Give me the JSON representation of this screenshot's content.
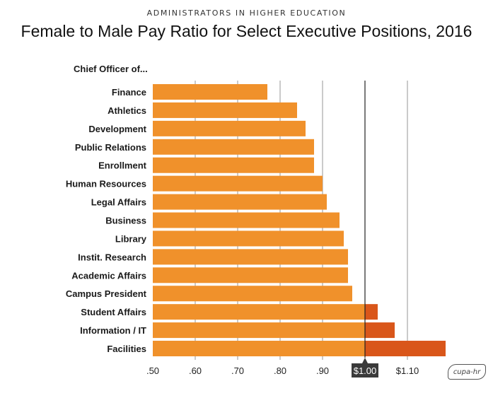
{
  "supertitle": "ADMINISTRATORS IN HIGHER EDUCATION",
  "title": "Female to Male Pay Ratio for Select Executive Positions, 2016",
  "logo_text": "cupa-hr",
  "chart_data": {
    "type": "bar",
    "orientation": "horizontal",
    "title": "Female to Male Pay Ratio for Select Executive Positions, 2016",
    "category_header": "Chief Officer of...",
    "categories": [
      "Finance",
      "Athletics",
      "Development",
      "Public Relations",
      "Enrollment",
      "Human Resources",
      "Legal Affairs",
      "Business",
      "Library",
      "Instit. Research",
      "Academic Affairs",
      "Campus President",
      "Student Affairs",
      "Information / IT",
      "Facilities"
    ],
    "values": [
      0.77,
      0.84,
      0.86,
      0.88,
      0.88,
      0.9,
      0.91,
      0.94,
      0.95,
      0.96,
      0.96,
      0.97,
      1.03,
      1.07,
      1.19
    ],
    "xlim": [
      0.5,
      1.2
    ],
    "ticks": [
      0.5,
      0.6,
      0.7,
      0.8,
      0.9,
      1.0,
      1.1
    ],
    "tick_labels": [
      ".50",
      ".60",
      ".70",
      ".80",
      ".90",
      "$1.00",
      "$1.10"
    ],
    "reference_line": 1.0,
    "highlight_tick_label": "$1.00",
    "grid": true,
    "colors": {
      "bar": "#f0912b",
      "bar_above_parity": "#d9561a",
      "grid": "#7a7a7a",
      "reference_line": "#222222",
      "highlight_badge": "#3a3a3a"
    }
  }
}
